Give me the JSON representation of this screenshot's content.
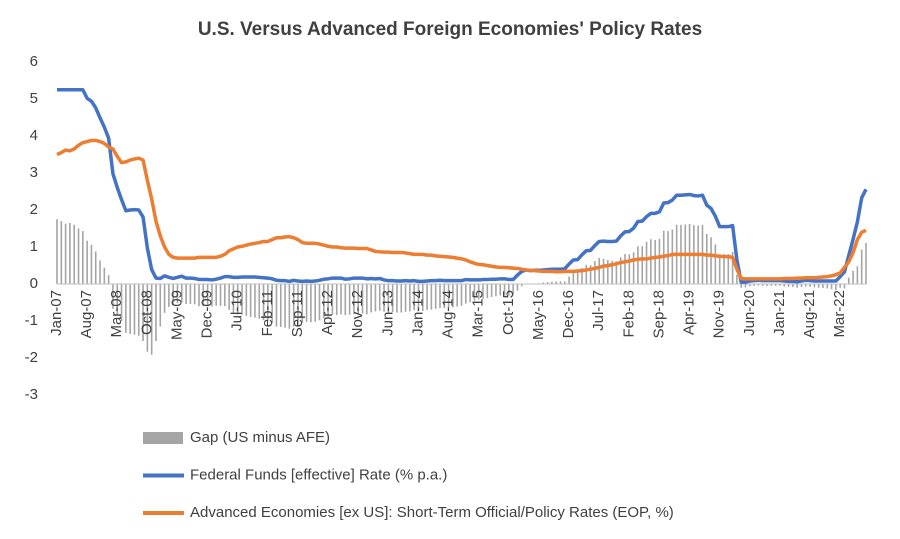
{
  "chart_data": {
    "type": "combo",
    "title": "U.S. Versus Advanced Foreign Economies' Policy Rates",
    "categories": [
      "Jan-07",
      null,
      null,
      null,
      null,
      null,
      null,
      "Aug-07",
      null,
      null,
      null,
      null,
      null,
      null,
      "Mar-08",
      null,
      null,
      null,
      null,
      null,
      null,
      "Oct-08",
      null,
      null,
      null,
      null,
      null,
      null,
      "May-09",
      null,
      null,
      null,
      null,
      null,
      null,
      "Dec-09",
      null,
      null,
      null,
      null,
      null,
      null,
      "Jul-10",
      null,
      null,
      null,
      null,
      null,
      null,
      "Feb-11",
      null,
      null,
      null,
      null,
      null,
      null,
      "Sep-11",
      null,
      null,
      null,
      null,
      null,
      null,
      "Apr-12",
      null,
      null,
      null,
      null,
      null,
      null,
      "Nov-12",
      null,
      null,
      null,
      null,
      null,
      null,
      "Jun-13",
      null,
      null,
      null,
      null,
      null,
      null,
      "Jan-14",
      null,
      null,
      null,
      null,
      null,
      null,
      "Aug-14",
      null,
      null,
      null,
      null,
      null,
      null,
      "Mar-15",
      null,
      null,
      null,
      null,
      null,
      null,
      "Oct-15",
      null,
      null,
      null,
      null,
      null,
      null,
      "May-16",
      null,
      null,
      null,
      null,
      null,
      null,
      "Dec-16",
      null,
      null,
      null,
      null,
      null,
      null,
      "Jul-17",
      null,
      null,
      null,
      null,
      null,
      null,
      "Feb-18",
      null,
      null,
      null,
      null,
      null,
      null,
      "Sep-18",
      null,
      null,
      null,
      null,
      null,
      null,
      "Apr-19",
      null,
      null,
      null,
      null,
      null,
      null,
      "Nov-19",
      null,
      null,
      null,
      null,
      null,
      null,
      "Jun-20",
      null,
      null,
      null,
      null,
      null,
      null,
      "Jan-21",
      null,
      null,
      null,
      null,
      null,
      null,
      "Aug-21",
      null,
      null,
      null,
      null,
      null,
      null,
      "Mar-22",
      null,
      null,
      null,
      null,
      null,
      null
    ],
    "series": [
      {
        "name": "Gap (US minus AFE)",
        "type": "bar",
        "color": "#a5a5a5",
        "values": [
          1.75,
          1.7,
          1.63,
          1.65,
          1.6,
          1.5,
          1.43,
          1.17,
          1.06,
          0.88,
          0.64,
          0.44,
          0.24,
          -0.67,
          -0.84,
          -1.0,
          -1.32,
          -1.35,
          -1.37,
          -1.4,
          -1.54,
          -1.83,
          -1.91,
          -1.54,
          -1.15,
          -0.78,
          -0.62,
          -0.57,
          -0.52,
          -0.49,
          -0.54,
          -0.54,
          -0.55,
          -0.6,
          -0.6,
          -0.6,
          -0.61,
          -0.59,
          -0.59,
          -0.6,
          -0.7,
          -0.77,
          -0.82,
          -0.83,
          -0.86,
          -0.89,
          -0.91,
          -0.94,
          -0.98,
          -0.99,
          -1.06,
          -1.15,
          -1.16,
          -1.18,
          -1.21,
          -1.15,
          -1.12,
          -1.05,
          -1.02,
          -1.03,
          -1.02,
          -0.98,
          -0.92,
          -0.88,
          -0.84,
          -0.84,
          -0.82,
          -0.84,
          -0.83,
          -0.81,
          -0.8,
          -0.8,
          -0.82,
          -0.77,
          -0.74,
          -0.72,
          -0.75,
          -0.77,
          -0.76,
          -0.77,
          -0.77,
          -0.75,
          -0.74,
          -0.71,
          -0.73,
          -0.73,
          -0.7,
          -0.69,
          -0.67,
          -0.65,
          -0.65,
          -0.64,
          -0.63,
          -0.61,
          -0.59,
          -0.53,
          -0.49,
          -0.45,
          -0.42,
          -0.4,
          -0.38,
          -0.35,
          -0.33,
          -0.31,
          -0.31,
          -0.32,
          -0.31,
          -0.18,
          -0.06,
          0.0,
          -0.01,
          0.01,
          0.02,
          0.04,
          0.05,
          0.06,
          0.07,
          0.07,
          0.07,
          0.2,
          0.31,
          0.31,
          0.43,
          0.52,
          0.51,
          0.62,
          0.7,
          0.68,
          0.65,
          0.63,
          0.61,
          0.72,
          0.81,
          0.8,
          0.86,
          1.02,
          1.02,
          1.14,
          1.21,
          1.19,
          1.22,
          1.44,
          1.43,
          1.47,
          1.6,
          1.6,
          1.61,
          1.62,
          1.59,
          1.58,
          1.6,
          1.35,
          1.26,
          1.07,
          0.8,
          0.81,
          0.81,
          0.86,
          0.25,
          -0.1,
          -0.09,
          -0.06,
          -0.05,
          -0.04,
          -0.05,
          -0.05,
          -0.05,
          -0.05,
          -0.05,
          -0.07,
          -0.08,
          -0.08,
          -0.1,
          -0.08,
          -0.07,
          -0.08,
          -0.09,
          -0.1,
          -0.11,
          -0.12,
          -0.14,
          -0.17,
          -0.1,
          -0.12,
          0.17,
          0.36,
          0.48,
          0.93,
          1.11
        ]
      },
      {
        "name": "Federal Funds [effective] Rate (% p.a.)",
        "type": "line",
        "color": "#4472c4",
        "values": [
          5.25,
          5.25,
          5.25,
          5.25,
          5.25,
          5.25,
          5.25,
          5.02,
          4.94,
          4.76,
          4.49,
          4.24,
          3.94,
          2.98,
          2.61,
          2.28,
          1.98,
          2.0,
          2.01,
          2.0,
          1.81,
          0.97,
          0.39,
          0.16,
          0.15,
          0.22,
          0.18,
          0.15,
          0.18,
          0.21,
          0.16,
          0.16,
          0.15,
          0.12,
          0.12,
          0.12,
          0.11,
          0.13,
          0.16,
          0.2,
          0.2,
          0.18,
          0.18,
          0.19,
          0.19,
          0.19,
          0.19,
          0.18,
          0.17,
          0.16,
          0.14,
          0.1,
          0.09,
          0.09,
          0.07,
          0.1,
          0.08,
          0.07,
          0.08,
          0.07,
          0.08,
          0.1,
          0.13,
          0.14,
          0.16,
          0.16,
          0.16,
          0.13,
          0.14,
          0.16,
          0.16,
          0.16,
          0.14,
          0.15,
          0.14,
          0.15,
          0.11,
          0.09,
          0.09,
          0.08,
          0.08,
          0.09,
          0.08,
          0.09,
          0.07,
          0.07,
          0.08,
          0.09,
          0.09,
          0.1,
          0.09,
          0.09,
          0.09,
          0.09,
          0.09,
          0.12,
          0.11,
          0.11,
          0.11,
          0.12,
          0.12,
          0.13,
          0.13,
          0.14,
          0.14,
          0.12,
          0.12,
          0.24,
          0.34,
          0.38,
          0.36,
          0.37,
          0.37,
          0.38,
          0.39,
          0.4,
          0.4,
          0.4,
          0.41,
          0.54,
          0.65,
          0.66,
          0.79,
          0.9,
          0.91,
          1.04,
          1.15,
          1.16,
          1.15,
          1.15,
          1.16,
          1.3,
          1.41,
          1.42,
          1.51,
          1.69,
          1.7,
          1.82,
          1.91,
          1.91,
          1.95,
          2.19,
          2.2,
          2.27,
          2.4,
          2.4,
          2.41,
          2.42,
          2.39,
          2.38,
          2.4,
          2.13,
          2.04,
          1.83,
          1.55,
          1.55,
          1.55,
          1.58,
          0.65,
          0.05,
          0.05,
          0.08,
          0.09,
          0.1,
          0.09,
          0.09,
          0.09,
          0.09,
          0.09,
          0.08,
          0.07,
          0.07,
          0.06,
          0.08,
          0.1,
          0.09,
          0.08,
          0.08,
          0.08,
          0.08,
          0.08,
          0.08,
          0.2,
          0.33,
          0.77,
          1.21,
          1.68,
          2.33,
          2.56
        ]
      },
      {
        "name": "Advanced Economies [ex US]: Short-Term Official/Policy Rates (EOP, %)",
        "type": "line",
        "color": "#ed7d31",
        "values": [
          3.5,
          3.55,
          3.62,
          3.6,
          3.65,
          3.75,
          3.82,
          3.85,
          3.88,
          3.88,
          3.85,
          3.8,
          3.7,
          3.65,
          3.45,
          3.28,
          3.3,
          3.35,
          3.38,
          3.4,
          3.35,
          2.8,
          2.3,
          1.7,
          1.3,
          1.0,
          0.8,
          0.72,
          0.7,
          0.7,
          0.7,
          0.7,
          0.7,
          0.72,
          0.72,
          0.72,
          0.72,
          0.72,
          0.75,
          0.8,
          0.9,
          0.95,
          1.0,
          1.02,
          1.05,
          1.08,
          1.1,
          1.12,
          1.15,
          1.15,
          1.2,
          1.25,
          1.25,
          1.27,
          1.28,
          1.25,
          1.2,
          1.12,
          1.1,
          1.1,
          1.1,
          1.08,
          1.05,
          1.02,
          1.0,
          1.0,
          0.98,
          0.97,
          0.97,
          0.97,
          0.96,
          0.96,
          0.96,
          0.92,
          0.88,
          0.87,
          0.86,
          0.86,
          0.85,
          0.85,
          0.85,
          0.84,
          0.82,
          0.8,
          0.8,
          0.8,
          0.78,
          0.78,
          0.76,
          0.75,
          0.74,
          0.73,
          0.72,
          0.7,
          0.68,
          0.65,
          0.6,
          0.56,
          0.53,
          0.52,
          0.5,
          0.48,
          0.46,
          0.45,
          0.45,
          0.44,
          0.43,
          0.42,
          0.4,
          0.38,
          0.37,
          0.36,
          0.35,
          0.34,
          0.34,
          0.34,
          0.33,
          0.33,
          0.34,
          0.34,
          0.34,
          0.35,
          0.36,
          0.38,
          0.4,
          0.42,
          0.45,
          0.48,
          0.5,
          0.52,
          0.55,
          0.58,
          0.6,
          0.62,
          0.65,
          0.67,
          0.68,
          0.68,
          0.7,
          0.72,
          0.73,
          0.75,
          0.77,
          0.8,
          0.8,
          0.8,
          0.8,
          0.8,
          0.8,
          0.8,
          0.8,
          0.78,
          0.78,
          0.76,
          0.75,
          0.74,
          0.74,
          0.72,
          0.4,
          0.15,
          0.14,
          0.14,
          0.14,
          0.14,
          0.14,
          0.14,
          0.14,
          0.14,
          0.14,
          0.15,
          0.15,
          0.15,
          0.16,
          0.16,
          0.17,
          0.17,
          0.17,
          0.18,
          0.19,
          0.2,
          0.22,
          0.25,
          0.3,
          0.45,
          0.6,
          0.85,
          1.2,
          1.4,
          1.45
        ]
      }
    ],
    "ylim": [
      -3,
      6
    ],
    "yticks": [
      -3,
      -2,
      -1,
      0,
      1,
      2,
      3,
      4,
      5,
      6
    ],
    "grid": false
  }
}
